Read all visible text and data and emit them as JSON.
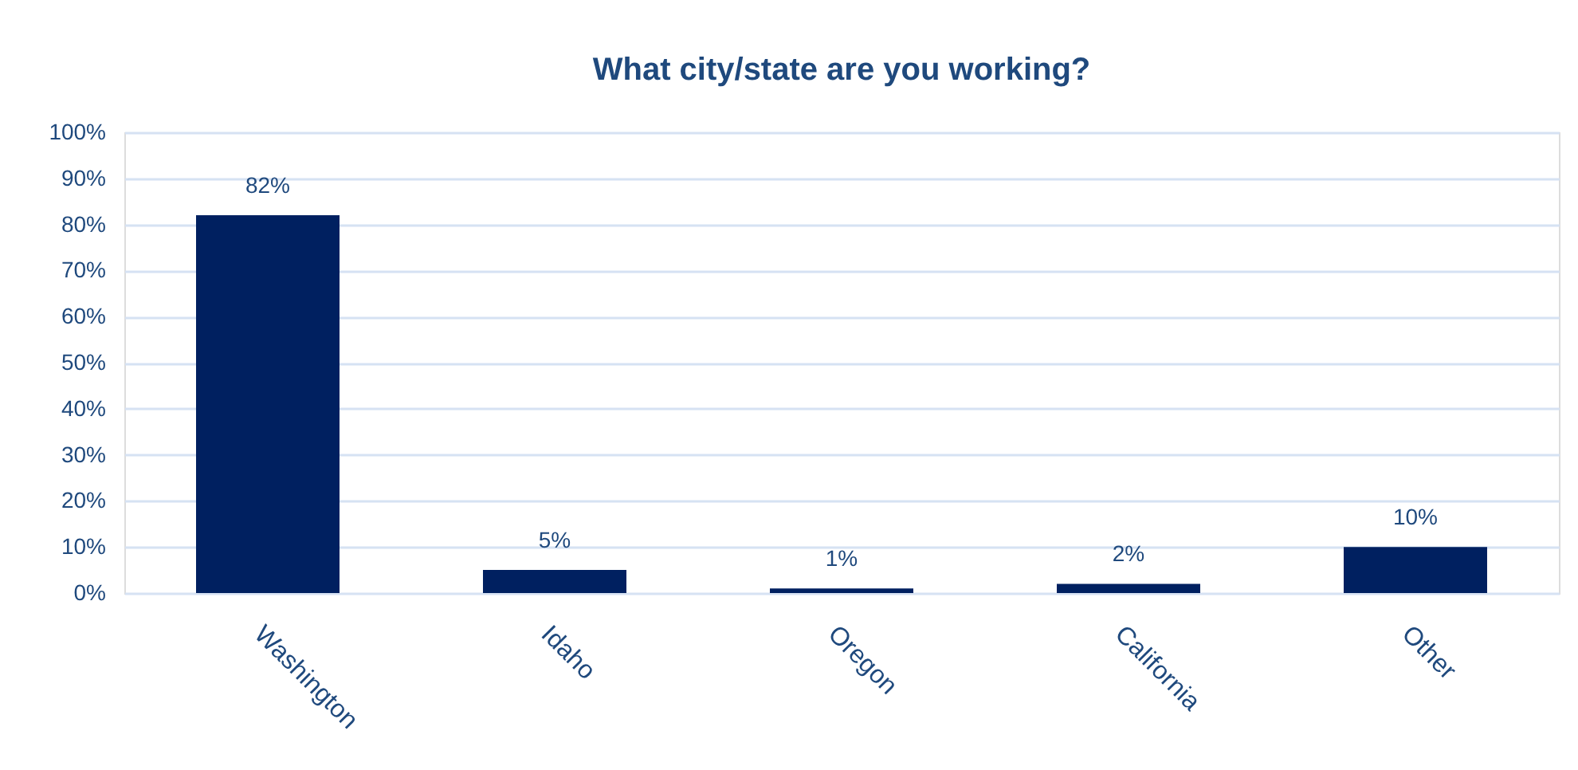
{
  "chart_data": {
    "type": "bar",
    "title": "What city/state are you working?",
    "categories": [
      "Washington",
      "Idaho",
      "Oregon",
      "California",
      "Other"
    ],
    "values": [
      82,
      5,
      1,
      2,
      10
    ],
    "value_labels": [
      "82%",
      "5%",
      "1%",
      "2%",
      "10%"
    ],
    "color": "#002060",
    "ylim": [
      0,
      100
    ],
    "yticks": [
      {
        "value": 0,
        "label": "0%"
      },
      {
        "value": 10,
        "label": "10%"
      },
      {
        "value": 20,
        "label": "20%"
      },
      {
        "value": 30,
        "label": "30%"
      },
      {
        "value": 40,
        "label": "40%"
      },
      {
        "value": 50,
        "label": "50%"
      },
      {
        "value": 60,
        "label": "60%"
      },
      {
        "value": 70,
        "label": "70%"
      },
      {
        "value": 80,
        "label": "80%"
      },
      {
        "value": 90,
        "label": "90%"
      },
      {
        "value": 100,
        "label": "100%"
      }
    ],
    "grid": "y"
  }
}
